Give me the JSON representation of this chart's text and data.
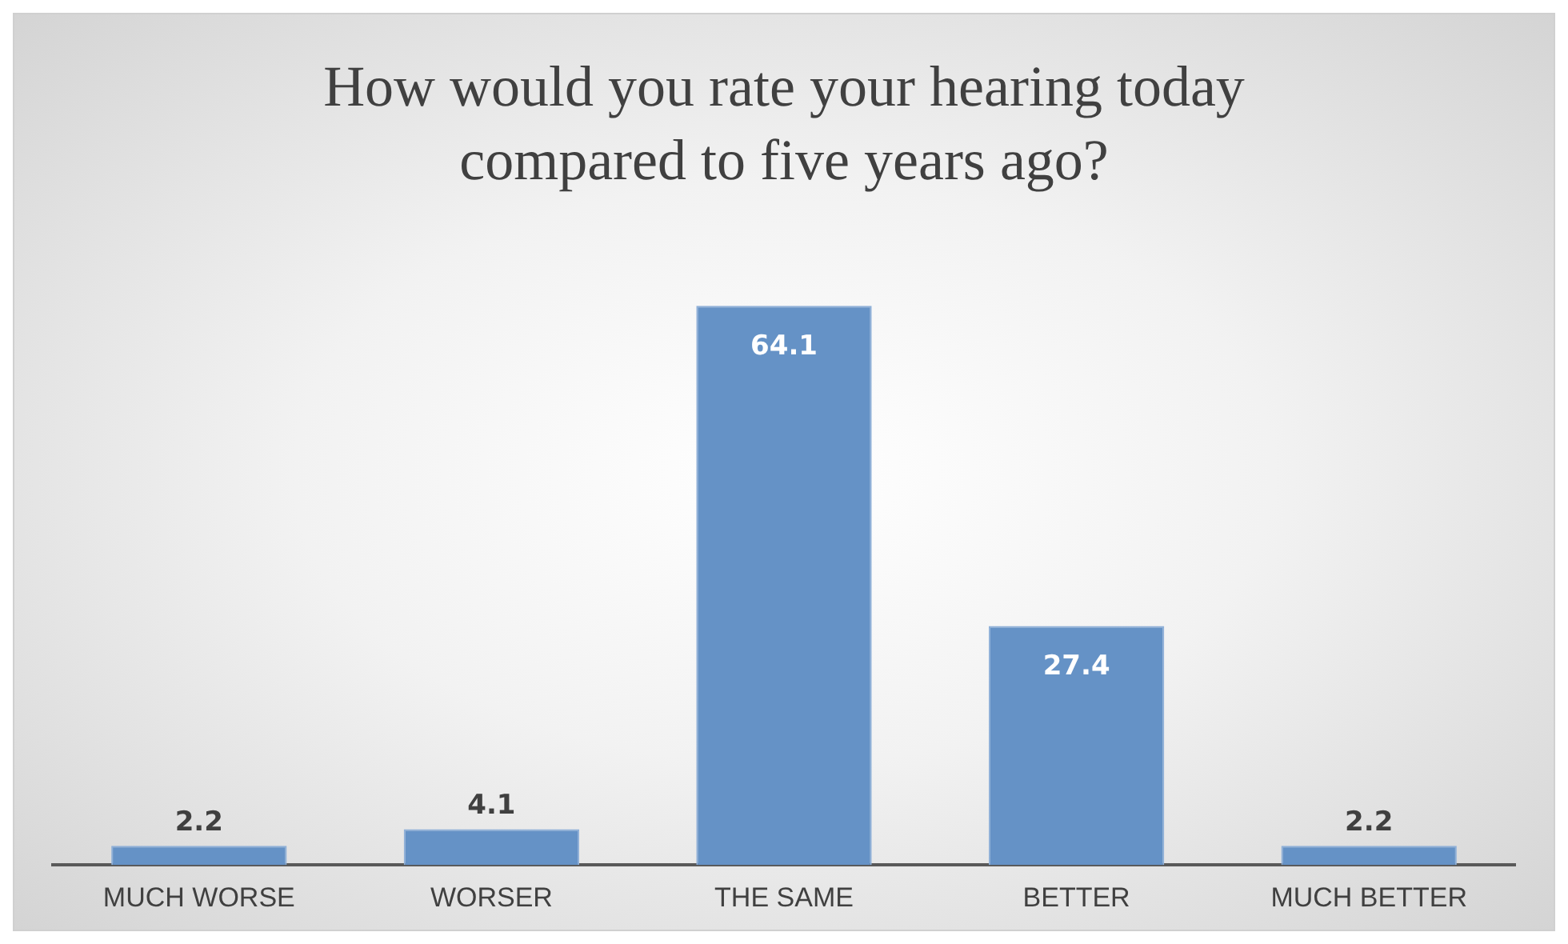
{
  "chart_data": {
    "type": "bar",
    "title": "How would you rate your hearing today compared to five years ago?",
    "categories": [
      "MUCH WORSE",
      "WORSER",
      "THE SAME",
      "BETTER",
      "MUCH BETTER"
    ],
    "values": [
      2.2,
      4.1,
      64.1,
      27.4,
      2.2
    ],
    "color": "#6592c6",
    "data_labels": true
  }
}
